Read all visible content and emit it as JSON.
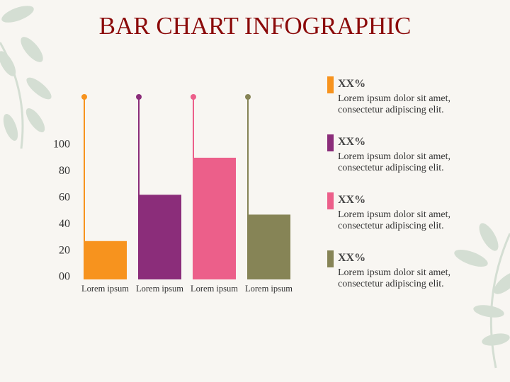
{
  "chart_data": {
    "type": "bar",
    "title": "BAR CHART INFOGRAPHIC",
    "categories": [
      "Lorem ipsum",
      "Lorem ipsum",
      "Lorem ipsum",
      "Lorem ipsum"
    ],
    "values": [
      29,
      64,
      92,
      49
    ],
    "colors": [
      "#f7931e",
      "#8b2d7a",
      "#ec5f8a",
      "#868456"
    ],
    "ylim": [
      0,
      100
    ],
    "yticks": [
      {
        "value": 0,
        "label": "00"
      },
      20,
      40,
      60,
      80,
      100
    ],
    "grid": false,
    "legend": [
      {
        "label": "XX%",
        "text": "Lorem ipsum dolor sit amet, consectetur adipiscing elit."
      },
      {
        "label": "XX%",
        "text": "Lorem ipsum dolor sit amet, consectetur adipiscing elit."
      },
      {
        "label": "XX%",
        "text": "Lorem ipsum dolor sit amet, consectetur adipiscing elit."
      },
      {
        "label": "XX%",
        "text": "Lorem ipsum dolor sit amet, consectetur adipiscing elit."
      }
    ]
  }
}
